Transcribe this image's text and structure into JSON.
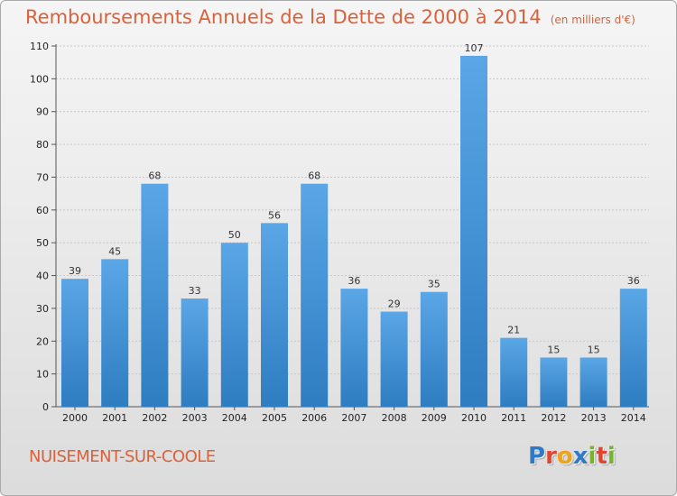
{
  "title": "Remboursements Annuels de la Dette de 2000 à 2014",
  "unit_note": "(en milliers d'€)",
  "place": "NUISEMENT-SUR-COOLE",
  "logo": "Proxiti",
  "colors": {
    "title": "#d9623b",
    "bar_top": "#5aa6e6",
    "bar_bottom": "#2e7dc1",
    "grid": "#c8c8c8"
  },
  "chart_data": {
    "type": "bar",
    "title": "Remboursements Annuels de la Dette de 2000 à 2014",
    "subtitle": "(en milliers d'€)",
    "xlabel": "",
    "ylabel": "",
    "categories": [
      "2000",
      "2001",
      "2002",
      "2003",
      "2004",
      "2005",
      "2006",
      "2007",
      "2008",
      "2009",
      "2010",
      "2011",
      "2012",
      "2013",
      "2014"
    ],
    "values": [
      39,
      45,
      68,
      33,
      50,
      56,
      68,
      36,
      29,
      35,
      107,
      21,
      15,
      15,
      36
    ],
    "ylim": [
      0,
      110
    ],
    "yticks": [
      0,
      10,
      20,
      30,
      40,
      50,
      60,
      70,
      80,
      90,
      100,
      110
    ],
    "grid": true,
    "legend": "none"
  }
}
